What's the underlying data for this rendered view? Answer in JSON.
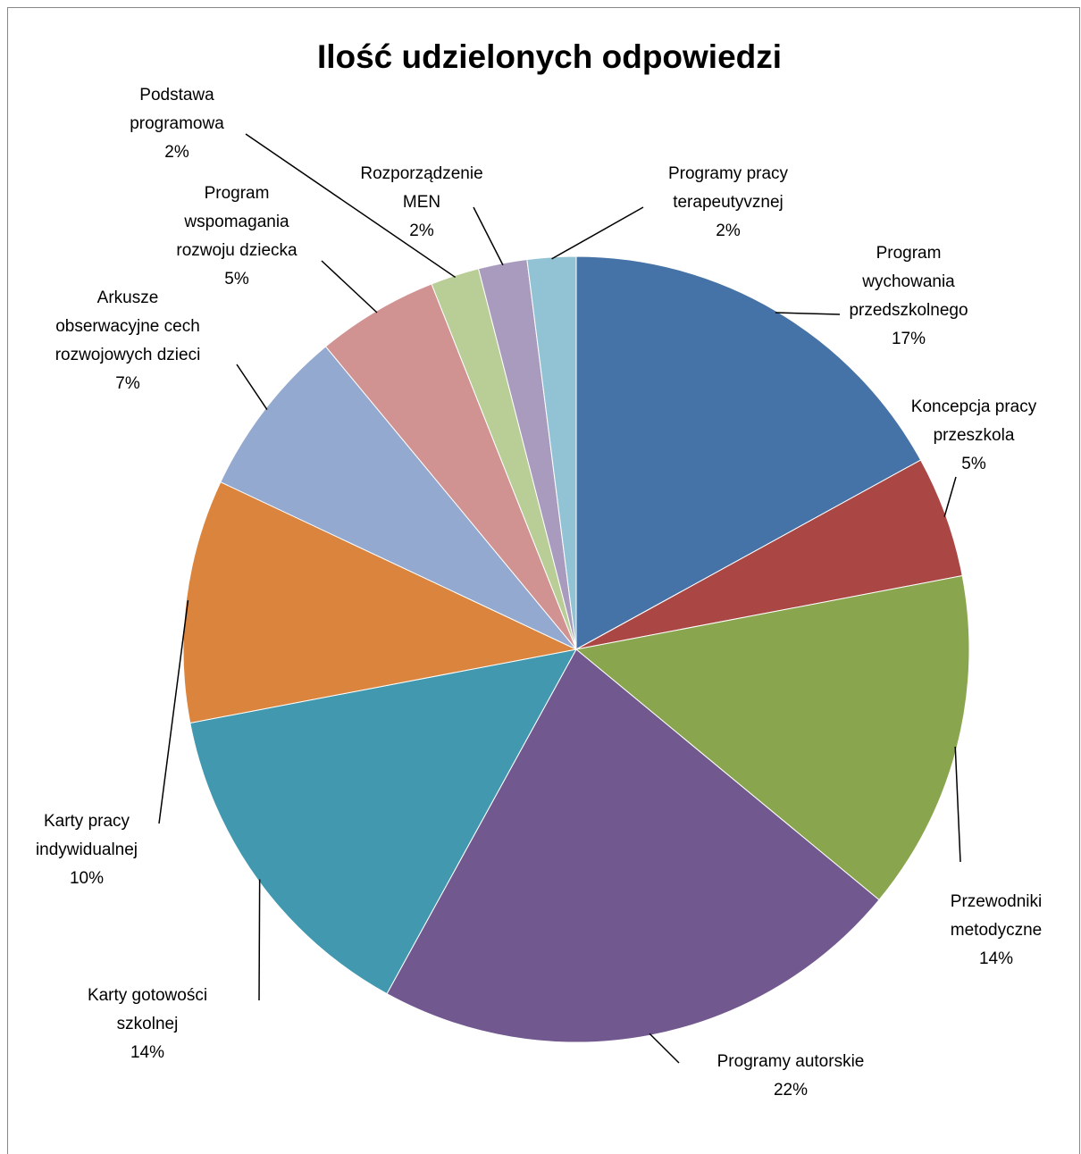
{
  "chart_data": {
    "type": "pie",
    "title": "Ilość udzielonych odpowiedzi",
    "categories": [
      "Program\nwychowania\nprzedszkolnego",
      "Koncepcja pracy\nprzeszkola",
      "Przewodniki\nmetodyczne",
      "Programy autorskie",
      "Karty gotowości\nszkolnej",
      "Karty pracy\nindywidualnej",
      "Arkusze\nobserwacyjne cech\nrozwojowych  dzieci",
      "Program\nwspomagania\nrozwoju dziecka",
      "Podstawa\nprogramowa",
      "Rozporządzenie\nMEN",
      "Programy pracy\nterapeutyvznej"
    ],
    "values": [
      17,
      5,
      14,
      22,
      14,
      10,
      7,
      5,
      2,
      2,
      2
    ],
    "value_labels": [
      "17%",
      "5%",
      "14%",
      "22%",
      "14%",
      "10%",
      "7%",
      "5%",
      "2%",
      "2%",
      "2%"
    ],
    "colors": [
      "#4572a7",
      "#aa4643",
      "#89a54e",
      "#71588f",
      "#4198af",
      "#db843d",
      "#93a9cf",
      "#d19392",
      "#b9cd96",
      "#a99bbd",
      "#92c3d5"
    ]
  }
}
